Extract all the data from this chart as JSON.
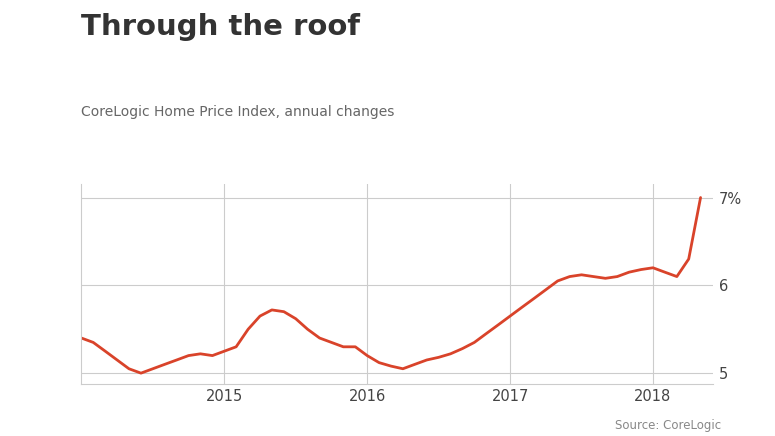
{
  "title": "Through the roof",
  "subtitle": "CoreLogic Home Price Index, annual changes",
  "source": "Source: CoreLogic",
  "line_color": "#d9432a",
  "background_color": "#ffffff",
  "grid_color": "#cccccc",
  "ylim": [
    4.88,
    7.15
  ],
  "yticks": [
    5,
    6,
    7
  ],
  "ytick_labels": [
    "5",
    "6",
    "7%"
  ],
  "x_values": [
    2014.0,
    2014.083,
    2014.167,
    2014.25,
    2014.333,
    2014.417,
    2014.5,
    2014.583,
    2014.667,
    2014.75,
    2014.833,
    2014.917,
    2015.0,
    2015.083,
    2015.167,
    2015.25,
    2015.333,
    2015.417,
    2015.5,
    2015.583,
    2015.667,
    2015.75,
    2015.833,
    2015.917,
    2016.0,
    2016.083,
    2016.167,
    2016.25,
    2016.333,
    2016.417,
    2016.5,
    2016.583,
    2016.667,
    2016.75,
    2016.833,
    2016.917,
    2017.0,
    2017.083,
    2017.167,
    2017.25,
    2017.333,
    2017.417,
    2017.5,
    2017.583,
    2017.667,
    2017.75,
    2017.833,
    2017.917,
    2018.0,
    2018.083,
    2018.167,
    2018.25,
    2018.333
  ],
  "y_values": [
    5.4,
    5.35,
    5.25,
    5.15,
    5.05,
    5.0,
    5.05,
    5.1,
    5.15,
    5.2,
    5.22,
    5.2,
    5.25,
    5.3,
    5.5,
    5.65,
    5.72,
    5.7,
    5.62,
    5.5,
    5.4,
    5.35,
    5.3,
    5.3,
    5.2,
    5.12,
    5.08,
    5.05,
    5.1,
    5.15,
    5.18,
    5.22,
    5.28,
    5.35,
    5.45,
    5.55,
    5.65,
    5.75,
    5.85,
    5.95,
    6.05,
    6.1,
    6.12,
    6.1,
    6.08,
    6.1,
    6.15,
    6.18,
    6.2,
    6.15,
    6.1,
    6.3,
    7.0
  ],
  "xticks": [
    2015,
    2016,
    2017,
    2018
  ],
  "xtick_labels": [
    "2015",
    "2016",
    "2017",
    "2018"
  ],
  "xlim": [
    2014.0,
    2018.42
  ]
}
